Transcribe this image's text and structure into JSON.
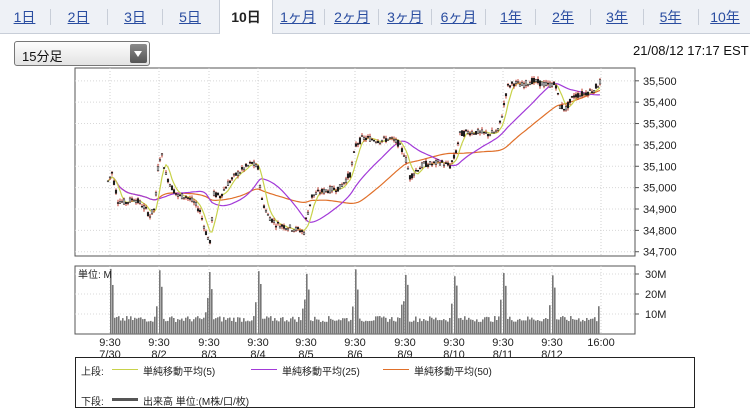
{
  "tabs": [
    {
      "label": "1日",
      "active": false
    },
    {
      "label": "2日",
      "active": false
    },
    {
      "label": "3日",
      "active": false
    },
    {
      "label": "5日",
      "active": false
    },
    {
      "label": "10日",
      "active": true
    },
    {
      "label": "1ヶ月",
      "active": false
    },
    {
      "label": "2ヶ月",
      "active": false
    },
    {
      "label": "3ヶ月",
      "active": false
    },
    {
      "label": "6ヶ月",
      "active": false
    },
    {
      "label": "1年",
      "active": false
    },
    {
      "label": "2年",
      "active": false
    },
    {
      "label": "3年",
      "active": false
    },
    {
      "label": "5年",
      "active": false
    },
    {
      "label": "10年",
      "active": false
    }
  ],
  "period_select": {
    "value": "15分足",
    "icon": "chevron-down-icon"
  },
  "timestamp": "21/08/12 17:17 EST",
  "colors": {
    "candle_up": "#ffffff",
    "candle_down": "#1a1a1a",
    "sma5": "#c8d24a",
    "sma25": "#a23ad8",
    "sma50": "#e0702a",
    "volume": "#777777"
  },
  "chart_data": [
    {
      "type": "candlestick",
      "yticks": [
        "34,700",
        "34,800",
        "34,900",
        "35,000",
        "35,100",
        "35,200",
        "35,300",
        "35,400",
        "35,500"
      ],
      "ylim": [
        34680,
        35560
      ],
      "x_day_labels": [
        {
          "time": "9:30",
          "date": "7/30"
        },
        {
          "time": "9:30",
          "date": "8/2"
        },
        {
          "time": "9:30",
          "date": "8/3"
        },
        {
          "time": "9:30",
          "date": "8/4"
        },
        {
          "time": "9:30",
          "date": "8/5"
        },
        {
          "time": "9:30",
          "date": "8/6"
        },
        {
          "time": "9:30",
          "date": "8/9"
        },
        {
          "time": "9:30",
          "date": "8/10"
        },
        {
          "time": "9:30",
          "date": "8/11"
        },
        {
          "time": "9:30",
          "date": "8/12"
        },
        {
          "time": "16:00",
          "date": ""
        }
      ],
      "daily_close": [
        {
          "date": "7/30",
          "close": 34935
        },
        {
          "date": "8/2",
          "close": 34838
        },
        {
          "date": "8/3",
          "close": 35116
        },
        {
          "date": "8/4",
          "close": 34792
        },
        {
          "date": "8/5",
          "close": 35064
        },
        {
          "date": "8/6",
          "close": 35208
        },
        {
          "date": "8/9",
          "close": 35101
        },
        {
          "date": "8/10",
          "close": 35264
        },
        {
          "date": "8/11",
          "close": 35485
        },
        {
          "date": "8/12",
          "close": 35500
        }
      ],
      "series": [
        {
          "name": "単純移動平均(5)"
        },
        {
          "name": "単純移動平均(25)"
        },
        {
          "name": "単純移動平均(50)"
        }
      ],
      "grid": true
    },
    {
      "type": "bar",
      "unit_label": "単位: M",
      "yticks": [
        "10M",
        "20M",
        "30M"
      ],
      "ylim": [
        0,
        34
      ],
      "session_pattern": "high at open, low midday, spike at close"
    }
  ],
  "legend": {
    "upper_label": "上段:",
    "items": [
      {
        "label": "単純移動平均(5)"
      },
      {
        "label": "単純移動平均(25)"
      },
      {
        "label": "単純移動平均(50)"
      }
    ],
    "lower_label": "下段:",
    "volume_label": "出来高 単位:(M株/口/枚)"
  }
}
